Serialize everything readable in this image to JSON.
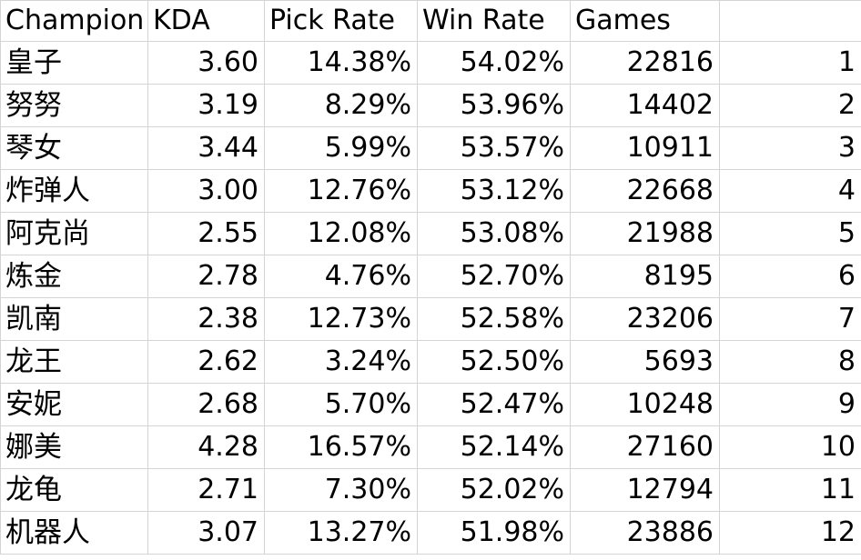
{
  "table": {
    "columns": [
      "Champion",
      "KDA",
      "Pick Rate",
      "Win Rate",
      "Games",
      ""
    ],
    "rows": [
      [
        "皇子",
        "3.60",
        "14.38%",
        "54.02%",
        "22816",
        "1"
      ],
      [
        "努努",
        "3.19",
        "8.29%",
        "53.96%",
        "14402",
        "2"
      ],
      [
        "琴女",
        "3.44",
        "5.99%",
        "53.57%",
        "10911",
        "3"
      ],
      [
        "炸弹人",
        "3.00",
        "12.76%",
        "53.12%",
        "22668",
        "4"
      ],
      [
        "阿克尚",
        "2.55",
        "12.08%",
        "53.08%",
        "21988",
        "5"
      ],
      [
        "炼金",
        "2.78",
        "4.76%",
        "52.70%",
        "8195",
        "6"
      ],
      [
        "凯南",
        "2.38",
        "12.73%",
        "52.58%",
        "23206",
        "7"
      ],
      [
        "龙王",
        "2.62",
        "3.24%",
        "52.50%",
        "5693",
        "8"
      ],
      [
        "安妮",
        "2.68",
        "5.70%",
        "52.47%",
        "10248",
        "9"
      ],
      [
        "娜美",
        "4.28",
        "16.57%",
        "52.14%",
        "27160",
        "10"
      ],
      [
        "龙龟",
        "2.71",
        "7.30%",
        "52.02%",
        "12794",
        "11"
      ],
      [
        "机器人",
        "3.07",
        "13.27%",
        "51.98%",
        "23886",
        "12"
      ]
    ]
  }
}
